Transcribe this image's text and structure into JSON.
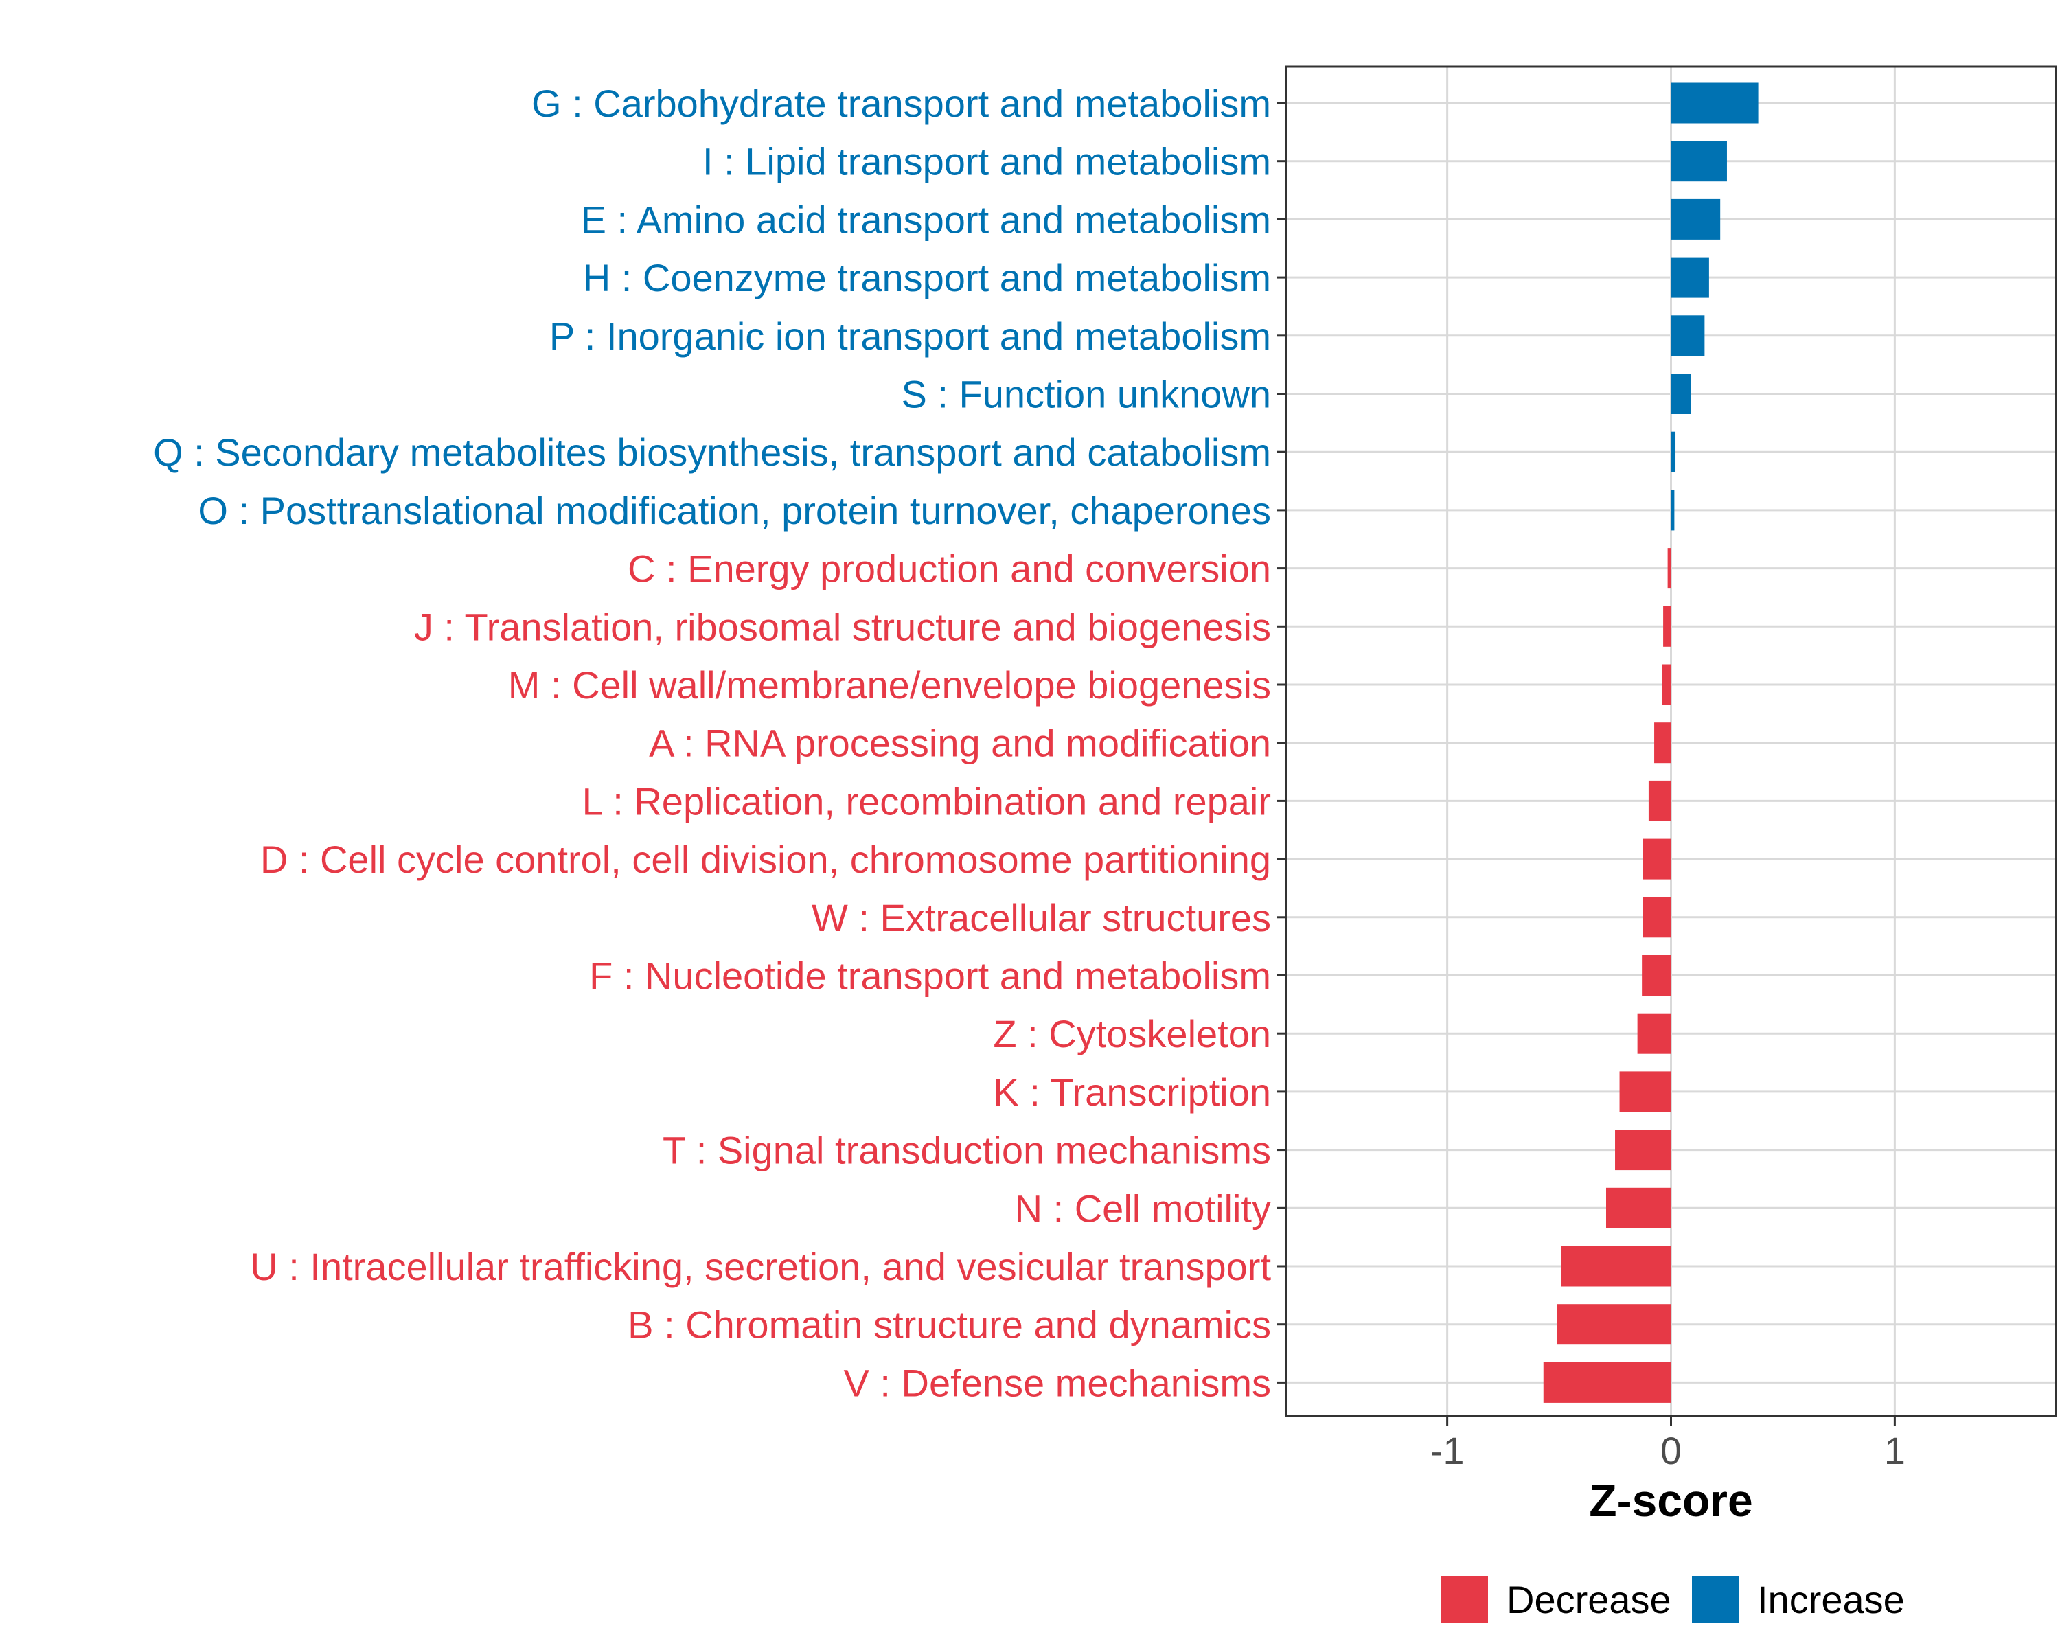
{
  "chart_data": {
    "type": "bar",
    "orientation": "horizontal",
    "title": "",
    "xlabel": "Z-score",
    "ylabel": "",
    "xlim": [
      -1.72,
      1.72
    ],
    "xticks": [
      {
        "value": -1,
        "label": "-1"
      },
      {
        "value": 0,
        "label": "0"
      },
      {
        "value": 1,
        "label": "1"
      }
    ],
    "grid": true,
    "colors": {
      "Decrease": "#e63946",
      "Increase": "#0072b2"
    },
    "legend": {
      "position": "bottom",
      "entries": [
        {
          "name": "Decrease",
          "color": "#e63946"
        },
        {
          "name": "Increase",
          "color": "#0072b2"
        }
      ]
    },
    "categories": [
      {
        "label": "G : Carbohydrate transport and metabolism",
        "value": 0.39,
        "group": "Increase"
      },
      {
        "label": "I : Lipid transport and metabolism",
        "value": 0.25,
        "group": "Increase"
      },
      {
        "label": "E : Amino acid transport and metabolism",
        "value": 0.22,
        "group": "Increase"
      },
      {
        "label": "H : Coenzyme transport and metabolism",
        "value": 0.17,
        "group": "Increase"
      },
      {
        "label": "P : Inorganic ion transport and metabolism",
        "value": 0.15,
        "group": "Increase"
      },
      {
        "label": "S : Function unknown",
        "value": 0.09,
        "group": "Increase"
      },
      {
        "label": "Q : Secondary metabolites biosynthesis, transport and catabolism",
        "value": 0.02,
        "group": "Increase"
      },
      {
        "label": "O : Posttranslational modification, protein turnover, chaperones",
        "value": 0.015,
        "group": "Increase"
      },
      {
        "label": "C : Energy production and conversion",
        "value": -0.015,
        "group": "Decrease"
      },
      {
        "label": "J : Translation, ribosomal structure and biogenesis",
        "value": -0.035,
        "group": "Decrease"
      },
      {
        "label": "M : Cell wall/membrane/envelope biogenesis",
        "value": -0.04,
        "group": "Decrease"
      },
      {
        "label": "A : RNA processing and modification",
        "value": -0.075,
        "group": "Decrease"
      },
      {
        "label": "L : Replication, recombination and repair",
        "value": -0.1,
        "group": "Decrease"
      },
      {
        "label": "D : Cell cycle control, cell division, chromosome partitioning",
        "value": -0.125,
        "group": "Decrease"
      },
      {
        "label": "W : Extracellular structures",
        "value": -0.125,
        "group": "Decrease"
      },
      {
        "label": "F : Nucleotide transport and metabolism",
        "value": -0.13,
        "group": "Decrease"
      },
      {
        "label": "Z : Cytoskeleton",
        "value": -0.15,
        "group": "Decrease"
      },
      {
        "label": "K : Transcription",
        "value": -0.23,
        "group": "Decrease"
      },
      {
        "label": "T : Signal transduction mechanisms",
        "value": -0.25,
        "group": "Decrease"
      },
      {
        "label": "N : Cell motility",
        "value": -0.29,
        "group": "Decrease"
      },
      {
        "label": "U : Intracellular trafficking, secretion, and vesicular transport",
        "value": -0.49,
        "group": "Decrease"
      },
      {
        "label": "B : Chromatin structure and dynamics",
        "value": -0.51,
        "group": "Decrease"
      },
      {
        "label": "V : Defense mechanisms",
        "value": -0.57,
        "group": "Decrease"
      }
    ]
  }
}
